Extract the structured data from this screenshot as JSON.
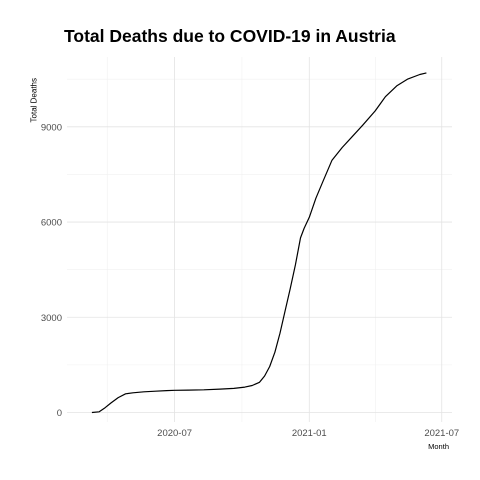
{
  "chart_data": {
    "type": "line",
    "title": "Total Deaths due to COVID-19 in Austria",
    "xlabel": "Month",
    "ylabel": "Total Deaths",
    "xlim": [
      "2020-02-05",
      "2021-07-15"
    ],
    "ylim": [
      -300,
      11200
    ],
    "x_ticks": [
      "2020-07-01",
      "2021-01-01",
      "2021-07-01"
    ],
    "x_tick_labels": [
      "2020-07",
      "2021-01",
      "2021-07"
    ],
    "y_ticks": [
      0,
      3000,
      6000,
      9000
    ],
    "y_tick_labels": [
      "0",
      "3000",
      "6000",
      "9000"
    ],
    "grid": true,
    "series": [
      {
        "color": "#000000",
        "x": [
          "2020-03-10",
          "2020-03-20",
          "2020-03-28",
          "2020-04-05",
          "2020-04-15",
          "2020-04-25",
          "2020-05-05",
          "2020-05-20",
          "2020-06-05",
          "2020-06-20",
          "2020-07-01",
          "2020-07-20",
          "2020-08-10",
          "2020-09-01",
          "2020-09-20",
          "2020-10-05",
          "2020-10-15",
          "2020-10-25",
          "2020-11-01",
          "2020-11-08",
          "2020-11-15",
          "2020-11-22",
          "2020-11-29",
          "2020-12-06",
          "2020-12-13",
          "2020-12-20",
          "2020-12-25",
          "2021-01-01",
          "2021-01-10",
          "2021-01-20",
          "2021-02-01",
          "2021-02-15",
          "2021-03-01",
          "2021-03-15",
          "2021-04-01",
          "2021-04-15",
          "2021-05-01",
          "2021-05-15",
          "2021-06-01",
          "2021-06-10"
        ],
        "values": [
          0,
          20,
          150,
          300,
          470,
          590,
          620,
          650,
          670,
          690,
          700,
          705,
          715,
          735,
          760,
          800,
          850,
          950,
          1150,
          1450,
          1900,
          2500,
          3200,
          3900,
          4650,
          5500,
          5800,
          6150,
          6750,
          7300,
          7950,
          8350,
          8700,
          9050,
          9500,
          9950,
          10300,
          10500,
          10650,
          10700
        ]
      }
    ]
  }
}
